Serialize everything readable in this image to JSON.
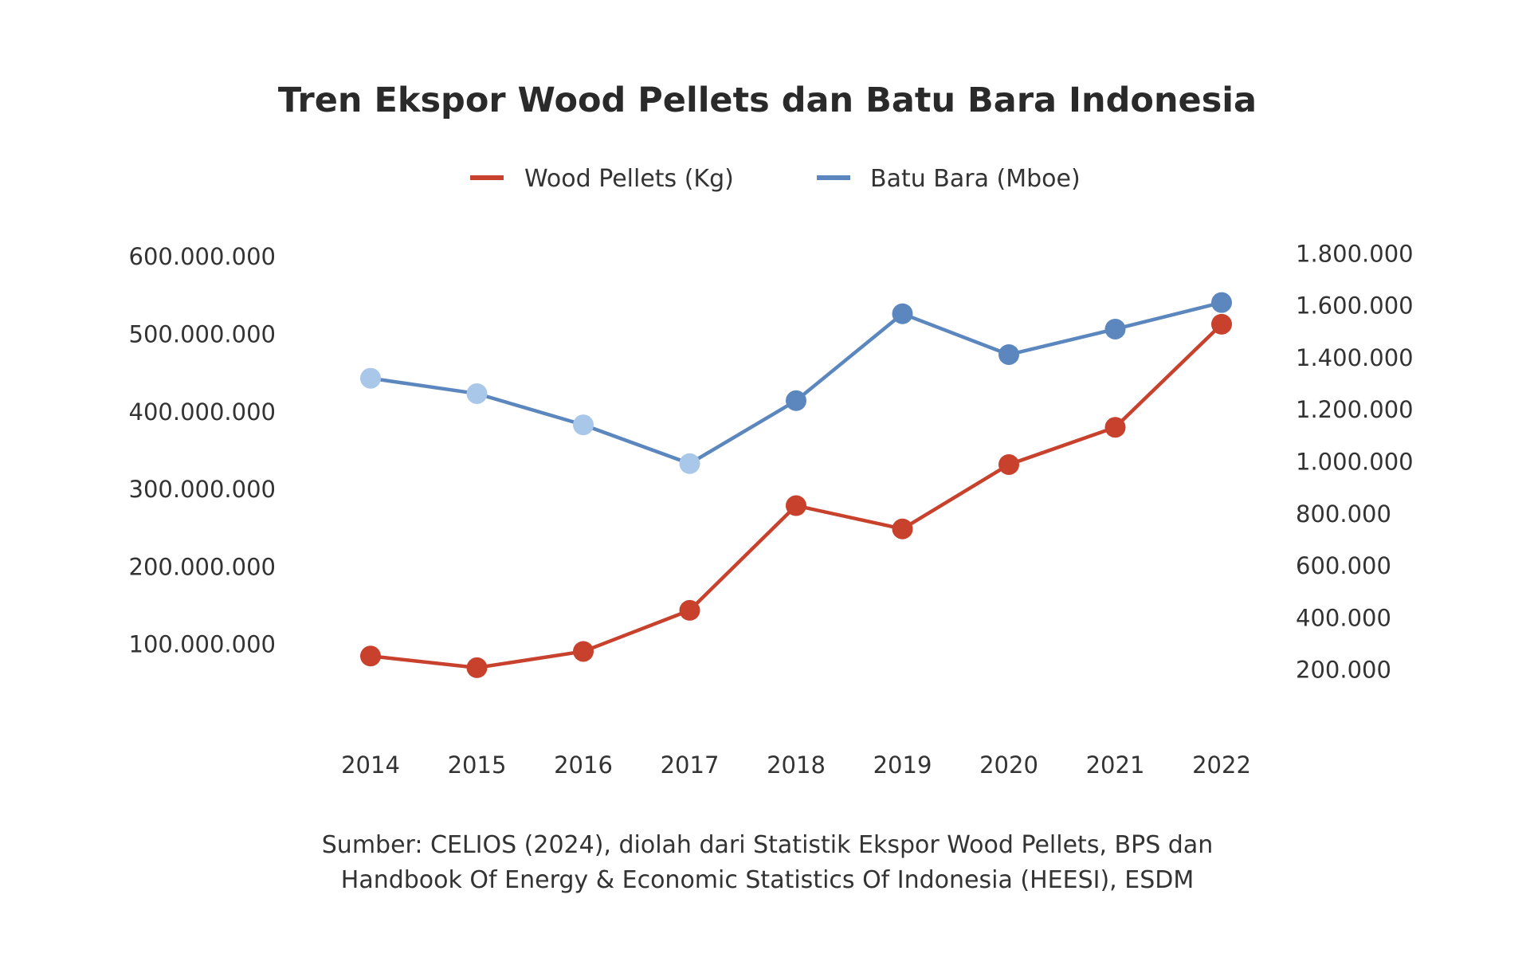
{
  "chart_data": {
    "type": "line",
    "title": "Tren Ekspor Wood Pellets dan Batu Bara Indonesia",
    "categories": [
      "2014",
      "2015",
      "2016",
      "2017",
      "2018",
      "2019",
      "2020",
      "2021",
      "2022"
    ],
    "series": [
      {
        "name": "Wood Pellets (Kg)",
        "axis": "left",
        "color": "#c8412d",
        "values": [
          85000000,
          70000000,
          91000000,
          144000000,
          279000000,
          249000000,
          332000000,
          380000000,
          513000000
        ]
      },
      {
        "name": "Batu Bara (Mboe)",
        "axis": "right",
        "color": "#5b87be",
        "faded_color": "#a9c7e8",
        "faded_points": [
          0,
          1,
          2,
          3
        ],
        "values": [
          1321000,
          1262000,
          1142000,
          993000,
          1235000,
          1569000,
          1412000,
          1510000,
          1612000
        ]
      }
    ],
    "y_left": {
      "ylim": [
        0,
        600000000
      ],
      "ticks": [
        {
          "value": 100000000,
          "label": "100.000.000"
        },
        {
          "value": 200000000,
          "label": "200.000.000"
        },
        {
          "value": 300000000,
          "label": "300.000.000"
        },
        {
          "value": 400000000,
          "label": "400.000.000"
        },
        {
          "value": 500000000,
          "label": "500.000.000"
        },
        {
          "value": 600000000,
          "label": "600.000.000"
        }
      ]
    },
    "y_right": {
      "ylim": [
        0,
        1800000
      ],
      "ticks": [
        {
          "value": 200000,
          "label": "200.000"
        },
        {
          "value": 400000,
          "label": "400.000"
        },
        {
          "value": 600000,
          "label": "600.000"
        },
        {
          "value": 800000,
          "label": "800.000"
        },
        {
          "value": 1000000,
          "label": "1.000.000"
        },
        {
          "value": 1200000,
          "label": "1.200.000"
        },
        {
          "value": 1400000,
          "label": "1.400.000"
        },
        {
          "value": 1600000,
          "label": "1.600.000"
        },
        {
          "value": 1800000,
          "label": "1.800.000"
        }
      ]
    },
    "legend_position": "top-center",
    "grid": false,
    "source": [
      "Sumber: CELIOS (2024), diolah dari Statistik Ekspor Wood Pellets, BPS dan",
      "Handbook Of Energy & Economic Statistics Of Indonesia (HEESI), ESDM"
    ]
  }
}
